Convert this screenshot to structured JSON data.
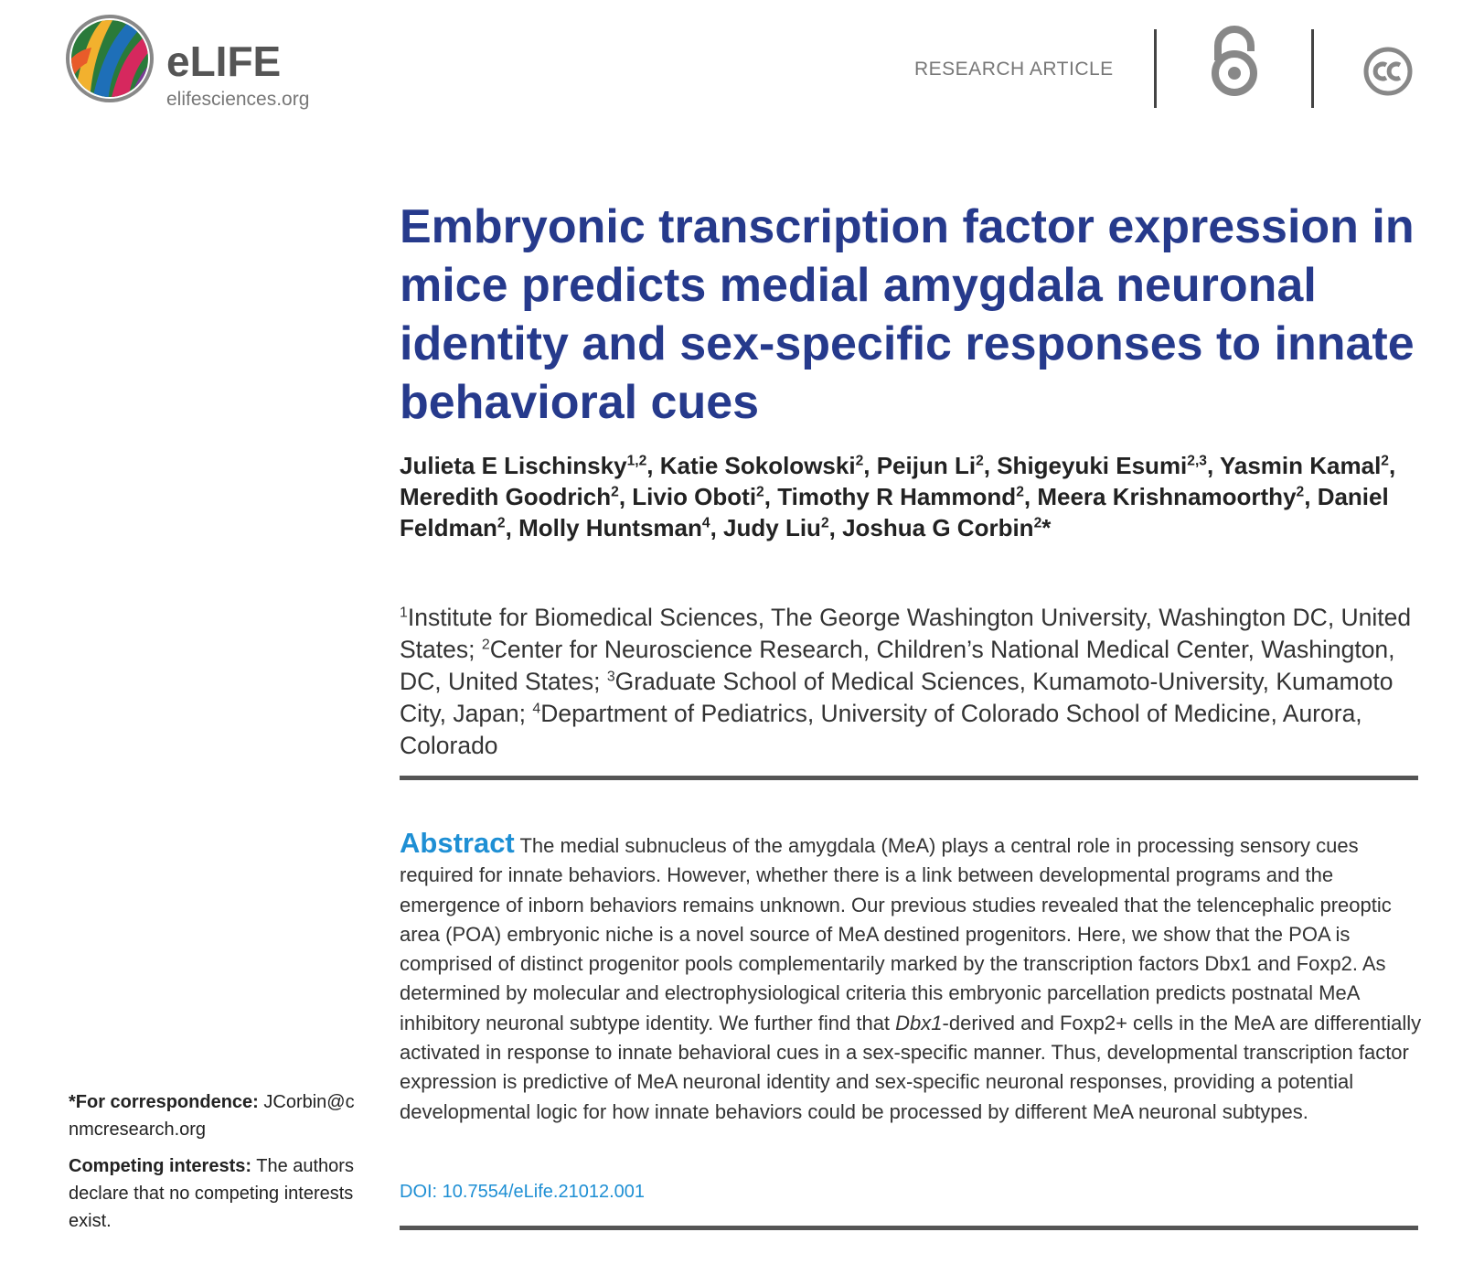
{
  "header": {
    "logo_name": "eLIFE",
    "logo_url": "elifesciences.org",
    "article_type": "RESEARCH ARTICLE"
  },
  "title": "Embryonic transcription factor expression in mice predicts medial amygdala neuronal identity and sex-specific responses to innate behavioral cues",
  "authors": [
    {
      "name": "Julieta E Lischinsky",
      "sup": "1,2",
      "after": ","
    },
    {
      "name": "Katie Sokolowski",
      "sup": "2",
      "after": ","
    },
    {
      "name": "Peijun Li",
      "sup": "2",
      "after": ","
    },
    {
      "name": "Shigeyuki Esumi",
      "sup": "2,3",
      "after": ","
    },
    {
      "name": "Yasmin Kamal",
      "sup": "2",
      "after": ","
    },
    {
      "name": "Meredith Goodrich",
      "sup": "2",
      "after": ","
    },
    {
      "name": "Livio Oboti",
      "sup": "2",
      "after": ","
    },
    {
      "name": "Timothy R Hammond",
      "sup": "2",
      "after": ","
    },
    {
      "name": "Meera Krishnamoorthy",
      "sup": "2",
      "after": ","
    },
    {
      "name": "Daniel Feldman",
      "sup": "2",
      "after": ","
    },
    {
      "name": "Molly Huntsman",
      "sup": "4",
      "after": ","
    },
    {
      "name": "Judy Liu",
      "sup": "2",
      "after": ","
    },
    {
      "name": "Joshua G Corbin",
      "sup": "2",
      "after": "*"
    }
  ],
  "affiliations": [
    {
      "num": "1",
      "text": "Institute for Biomedical Sciences, The George Washington University, Washington DC, United States;"
    },
    {
      "num": "2",
      "text": "Center for Neuroscience Research, Children’s National Medical Center, Washington, DC, United States;"
    },
    {
      "num": "3",
      "text": "Graduate School of Medical Sciences, Kumamoto-University, Kumamoto City, Japan;"
    },
    {
      "num": "4",
      "text": "Department of Pediatrics, University of Colorado School of Medicine, Aurora, Colorado"
    }
  ],
  "abstract": {
    "heading": "Abstract",
    "body_before": "The medial subnucleus of the amygdala (MeA) plays a central role in processing sensory cues required for innate behaviors. However, whether there is a link between developmental programs and the emergence of inborn behaviors remains unknown. Our previous studies revealed that the telencephalic preoptic area (POA) embryonic niche is a novel source of MeA destined progenitors. Here, we show that the POA is comprised of distinct progenitor pools complementarily marked by the transcription factors Dbx1 and Foxp2. As determined by molecular and electrophysiological criteria this embryonic parcellation predicts postnatal MeA inhibitory neuronal subtype identity. We further find that",
    "body_italic": "Dbx1",
    "body_after": "-derived and Foxp2+ cells in the MeA are differentially activated in response to innate behavioral cues in a sex-specific manner. Thus, developmental transcription factor expression is predictive of MeA neuronal identity and sex-specific neuronal responses, providing a potential developmental logic for how innate behaviors could be processed by different MeA neuronal subtypes.",
    "doi": "DOI: 10.7554/eLife.21012.001"
  },
  "sidebar": {
    "correspondence_label": "*For correspondence:",
    "correspondence_value": "JCorbin@cnmcresearch.org",
    "competing_label": "Competing interests:",
    "competing_value": "The authors declare that no competing interests exist."
  }
}
